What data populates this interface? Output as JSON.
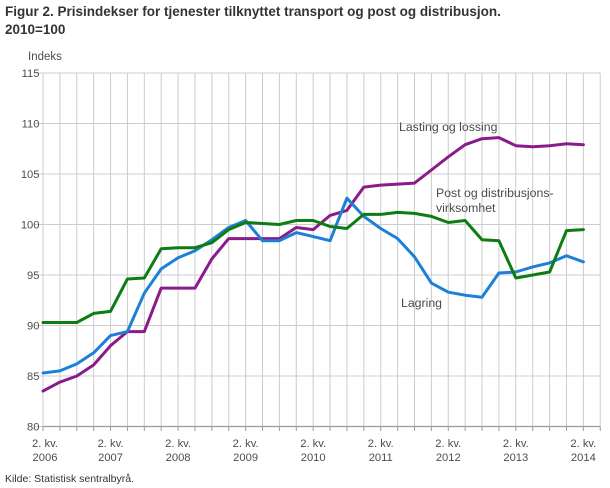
{
  "title": "Figur 2. Prisindekser for tjenester tilknyttet transport og post og distribusjon.\n2010=100",
  "unit_label": "Indeks",
  "source": "Kilde: Statistisk sentralbyrå.",
  "chart_data": {
    "type": "line",
    "title": "Figur 2. Prisindekser for tjenester tilknyttet transport og post og distribusjon. 2010=100",
    "ylabel": "Indeks",
    "ylim": [
      80,
      115
    ],
    "ytick_step": 5,
    "grid": true,
    "legend_position": "inline-annotations",
    "x_unit": "quarter",
    "x_range": "2. kv. 2006 - 2. kv. 2014",
    "n_points": 33,
    "y_ticks": [
      "80",
      "85",
      "90",
      "95",
      "100",
      "105",
      "110",
      "115"
    ],
    "x_ticks": [
      {
        "kv": "2. kv.",
        "year": "2006"
      },
      {
        "kv": "2. kv.",
        "year": "2007"
      },
      {
        "kv": "2. kv.",
        "year": "2008"
      },
      {
        "kv": "2. kv.",
        "year": "2009"
      },
      {
        "kv": "2. kv.",
        "year": "2010"
      },
      {
        "kv": "2. kv.",
        "year": "2011"
      },
      {
        "kv": "2. kv.",
        "year": "2012"
      },
      {
        "kv": "2. kv.",
        "year": "2013"
      },
      {
        "kv": "2. kv.",
        "year": "2014"
      }
    ],
    "series": [
      {
        "id": "lasting-og-lossing",
        "name": "Lasting og lossing",
        "color": "#8b1b8b",
        "values": [
          83.5,
          84.4,
          85.0,
          86.1,
          88.0,
          89.4,
          89.4,
          93.7,
          93.7,
          93.7,
          96.6,
          98.6,
          98.6,
          98.6,
          98.6,
          99.7,
          99.5,
          100.9,
          101.4,
          103.7,
          103.9,
          104.0,
          104.1,
          105.4,
          106.7,
          107.9,
          108.5,
          108.6,
          107.8,
          107.7,
          107.8,
          108.0,
          107.9
        ]
      },
      {
        "id": "lagring",
        "name": "Lagring",
        "color": "#1c80d6",
        "values": [
          85.3,
          85.5,
          86.2,
          87.3,
          89.0,
          89.4,
          93.2,
          95.6,
          96.7,
          97.4,
          98.5,
          99.7,
          100.4,
          98.4,
          98.4,
          99.2,
          98.8,
          98.4,
          102.6,
          100.8,
          99.6,
          98.6,
          96.8,
          94.2,
          93.3,
          93.0,
          92.8,
          95.2,
          95.3,
          95.8,
          96.2,
          96.9,
          96.3
        ]
      },
      {
        "id": "post-og-distribusjonsvirksomhet",
        "name": "Post og distribusjonsvirksomhet",
        "color": "#0d7c12",
        "values": [
          90.3,
          90.3,
          90.3,
          91.2,
          91.4,
          94.6,
          94.7,
          97.6,
          97.7,
          97.7,
          98.2,
          99.5,
          100.2,
          100.1,
          100.0,
          100.4,
          100.4,
          99.8,
          99.6,
          101.0,
          101.0,
          101.2,
          101.1,
          100.8,
          100.2,
          100.4,
          98.5,
          98.4,
          94.7,
          95.0,
          95.3,
          99.4,
          99.5
        ]
      }
    ],
    "annotations": [
      {
        "id": "lasting",
        "text": "Lasting og lossing"
      },
      {
        "id": "post",
        "text": "Post og distribusjons-\nvirksomhet"
      },
      {
        "id": "lagring",
        "text": "Lagring"
      }
    ],
    "colors": {
      "grid": "#cccccc",
      "axis": "#9b9b9b",
      "axis_text": "#4d4d4d"
    }
  }
}
